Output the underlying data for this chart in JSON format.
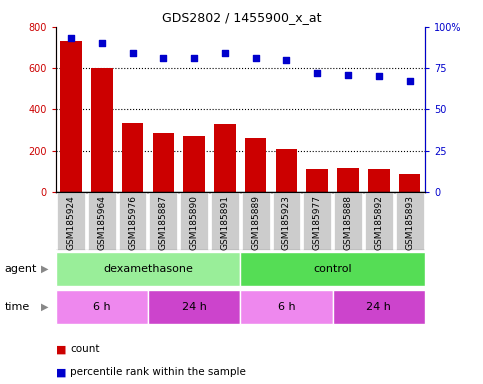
{
  "title": "GDS2802 / 1455900_x_at",
  "samples": [
    "GSM185924",
    "GSM185964",
    "GSM185976",
    "GSM185887",
    "GSM185890",
    "GSM185891",
    "GSM185889",
    "GSM185923",
    "GSM185977",
    "GSM185888",
    "GSM185892",
    "GSM185893"
  ],
  "counts": [
    730,
    600,
    335,
    285,
    270,
    330,
    260,
    210,
    110,
    118,
    110,
    85
  ],
  "percentiles": [
    93,
    90,
    84,
    81,
    81,
    84,
    81,
    80,
    72,
    71,
    70,
    67
  ],
  "ylim_left": [
    0,
    800
  ],
  "ylim_right": [
    0,
    100
  ],
  "yticks_left": [
    0,
    200,
    400,
    600,
    800
  ],
  "yticks_right": [
    0,
    25,
    50,
    75,
    100
  ],
  "bar_color": "#cc0000",
  "dot_color": "#0000cc",
  "agent_groups": [
    {
      "label": "dexamethasone",
      "start": 0,
      "end": 6,
      "color": "#99ee99"
    },
    {
      "label": "control",
      "start": 6,
      "end": 12,
      "color": "#55dd55"
    }
  ],
  "time_groups": [
    {
      "label": "6 h",
      "start": 0,
      "end": 3,
      "color": "#ee88ee"
    },
    {
      "label": "24 h",
      "start": 3,
      "end": 6,
      "color": "#cc44cc"
    },
    {
      "label": "6 h",
      "start": 6,
      "end": 9,
      "color": "#ee88ee"
    },
    {
      "label": "24 h",
      "start": 9,
      "end": 12,
      "color": "#cc44cc"
    }
  ],
  "tick_label_color_left": "#cc0000",
  "tick_label_color_right": "#0000cc",
  "xticklabel_bg": "#cccccc",
  "legend_count_color": "#cc0000",
  "legend_dot_color": "#0000cc"
}
